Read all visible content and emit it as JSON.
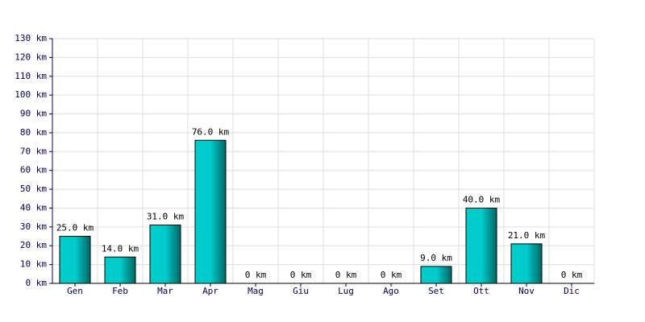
{
  "chart_data": {
    "type": "bar",
    "categories": [
      "Gen",
      "Feb",
      "Mar",
      "Apr",
      "Mag",
      "Giu",
      "Lug",
      "Ago",
      "Set",
      "Ott",
      "Nov",
      "Dic"
    ],
    "values": [
      25,
      14,
      31,
      76,
      0,
      0,
      0,
      0,
      9,
      40,
      21,
      0
    ],
    "value_labels": [
      "25.0 km",
      "14.0 km",
      "31.0 km",
      "76.0 km",
      "0 km",
      "0 km",
      "0 km",
      "0 km",
      "9.0 km",
      "40.0 km",
      "21.0 km",
      "0 km"
    ],
    "color": "#00cccc",
    "ylim": [
      0,
      130
    ],
    "yticks": [
      {
        "value": 0,
        "label": "0 km"
      },
      {
        "value": 10,
        "label": "10 km"
      },
      {
        "value": 20,
        "label": "20 km"
      },
      {
        "value": 30,
        "label": "30 km"
      },
      {
        "value": 40,
        "label": "40 km"
      },
      {
        "value": 50,
        "label": "50 km"
      },
      {
        "value": 60,
        "label": "60 km"
      },
      {
        "value": 70,
        "label": "70 km"
      },
      {
        "value": 80,
        "label": "80 km"
      },
      {
        "value": 90,
        "label": "90 km"
      },
      {
        "value": 100,
        "label": "100 km"
      },
      {
        "value": 110,
        "label": "110 km"
      },
      {
        "value": 120,
        "label": "120 km"
      },
      {
        "value": 130,
        "label": "130 km"
      }
    ],
    "grid": true
  }
}
